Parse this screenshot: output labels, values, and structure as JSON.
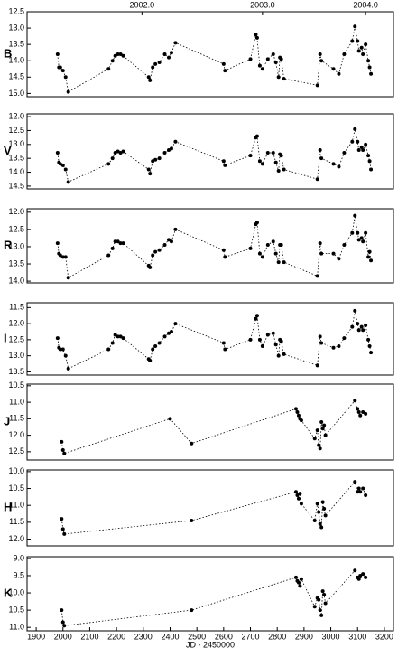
{
  "chart_data": [
    {
      "type": "line",
      "ylabel": "B",
      "color": "#000000",
      "linestyle": "dotted",
      "y_inverted": true,
      "xlim": [
        1866,
        3234
      ],
      "ylim": [
        12.5,
        15.1
      ],
      "yticks": [
        12.5,
        {
          "value": 13,
          "label": "13.0"
        },
        13.5,
        {
          "value": 14,
          "label": "14.0"
        },
        14.5,
        {
          "value": 15,
          "label": "15.0"
        }
      ],
      "x2ticks": [
        {
          "value": 2295,
          "label": "2002.0"
        },
        {
          "value": 2745,
          "label": "2003.0"
        },
        {
          "value": 3130,
          "label": "2004.0"
        }
      ],
      "x": [
        1980,
        1985,
        1990,
        2000,
        2010,
        2020,
        2170,
        2185,
        2195,
        2205,
        2215,
        2225,
        2320,
        2325,
        2335,
        2345,
        2360,
        2380,
        2395,
        2405,
        2420,
        2600,
        2605,
        2700,
        2720,
        2725,
        2735,
        2745,
        2765,
        2785,
        2795,
        2805,
        2810,
        2815,
        2825,
        2950,
        2960,
        2965,
        3010,
        3030,
        3050,
        3080,
        3090,
        3100,
        3105,
        3115,
        3120,
        3130,
        3140,
        3145,
        3150
      ],
      "values": [
        13.8,
        14.2,
        14.2,
        14.3,
        14.5,
        14.95,
        14.25,
        14.0,
        13.85,
        13.8,
        13.8,
        13.85,
        14.5,
        14.6,
        14.2,
        14.1,
        14.05,
        13.8,
        13.9,
        13.75,
        13.45,
        14.1,
        14.3,
        13.95,
        13.2,
        13.3,
        14.15,
        14.25,
        13.95,
        13.8,
        14.05,
        14.5,
        13.9,
        13.95,
        14.55,
        14.75,
        13.8,
        14.0,
        14.25,
        14.4,
        13.8,
        13.4,
        12.95,
        13.4,
        13.7,
        13.6,
        13.8,
        13.5,
        14.0,
        14.2,
        14.4
      ]
    },
    {
      "type": "line",
      "ylabel": "V",
      "color": "#000000",
      "linestyle": "dotted",
      "y_inverted": true,
      "xlim": [
        1866,
        3234
      ],
      "ylim": [
        11.9,
        14.6
      ],
      "yticks": [
        {
          "value": 12,
          "label": "12.0"
        },
        12.5,
        {
          "value": 13,
          "label": "13.0"
        },
        13.5,
        {
          "value": 14,
          "label": "14.0"
        },
        14.5
      ],
      "x": [
        1980,
        1985,
        1990,
        2000,
        2010,
        2020,
        2170,
        2185,
        2195,
        2205,
        2215,
        2225,
        2320,
        2325,
        2335,
        2345,
        2360,
        2380,
        2395,
        2405,
        2420,
        2600,
        2605,
        2700,
        2720,
        2725,
        2735,
        2745,
        2765,
        2785,
        2795,
        2805,
        2810,
        2815,
        2825,
        2950,
        2960,
        2965,
        3010,
        3030,
        3050,
        3080,
        3090,
        3100,
        3105,
        3115,
        3120,
        3130,
        3140,
        3145,
        3150
      ],
      "values": [
        13.3,
        13.65,
        13.7,
        13.75,
        13.9,
        14.35,
        13.7,
        13.5,
        13.3,
        13.25,
        13.3,
        13.25,
        13.9,
        14.05,
        13.6,
        13.55,
        13.5,
        13.3,
        13.2,
        13.15,
        12.9,
        13.6,
        13.75,
        13.4,
        12.75,
        12.7,
        13.6,
        13.7,
        13.3,
        13.3,
        13.65,
        13.95,
        13.35,
        13.4,
        13.9,
        14.25,
        13.2,
        13.5,
        13.7,
        13.8,
        13.3,
        12.9,
        12.45,
        12.9,
        13.2,
        13.1,
        13.2,
        13.0,
        13.4,
        13.6,
        13.9
      ]
    },
    {
      "type": "line",
      "ylabel": "R",
      "color": "#000000",
      "linestyle": "dotted",
      "y_inverted": true,
      "xlim": [
        1866,
        3234
      ],
      "ylim": [
        11.9,
        14.05
      ],
      "yticks": [
        {
          "value": 12,
          "label": "12.0"
        },
        12.5,
        {
          "value": 13,
          "label": "13.0"
        },
        13.5,
        {
          "value": 14,
          "label": "14.0"
        }
      ],
      "x": [
        1980,
        1985,
        1990,
        2000,
        2010,
        2020,
        2170,
        2185,
        2195,
        2205,
        2215,
        2225,
        2320,
        2325,
        2335,
        2345,
        2360,
        2380,
        2395,
        2405,
        2420,
        2600,
        2605,
        2700,
        2720,
        2725,
        2735,
        2745,
        2765,
        2785,
        2795,
        2805,
        2810,
        2815,
        2825,
        2950,
        2960,
        2965,
        3010,
        3030,
        3050,
        3080,
        3090,
        3100,
        3105,
        3115,
        3120,
        3130,
        3140,
        3145,
        3150
      ],
      "values": [
        12.9,
        13.2,
        13.25,
        13.3,
        13.3,
        13.9,
        13.25,
        13.05,
        12.85,
        12.85,
        12.9,
        12.9,
        13.55,
        13.6,
        13.25,
        13.15,
        13.1,
        12.95,
        12.8,
        12.85,
        12.5,
        13.1,
        13.3,
        13.05,
        12.35,
        12.3,
        13.2,
        13.3,
        12.95,
        12.85,
        13.2,
        13.45,
        12.95,
        12.95,
        13.45,
        13.85,
        12.9,
        13.2,
        13.2,
        13.35,
        12.95,
        12.6,
        12.1,
        12.6,
        12.8,
        12.75,
        12.85,
        12.6,
        13.3,
        13.15,
        13.4
      ]
    },
    {
      "type": "line",
      "ylabel": "I",
      "color": "#000000",
      "linestyle": "dotted",
      "y_inverted": true,
      "xlim": [
        1866,
        3234
      ],
      "ylim": [
        11.35,
        13.6
      ],
      "yticks": [
        11.5,
        {
          "value": 12,
          "label": "12.0"
        },
        12.5,
        {
          "value": 13,
          "label": "13.0"
        },
        13.5
      ],
      "x": [
        1980,
        1985,
        1990,
        2000,
        2010,
        2020,
        2170,
        2185,
        2195,
        2205,
        2215,
        2225,
        2320,
        2325,
        2335,
        2345,
        2360,
        2380,
        2395,
        2405,
        2420,
        2600,
        2605,
        2700,
        2720,
        2725,
        2735,
        2745,
        2765,
        2785,
        2795,
        2805,
        2810,
        2815,
        2825,
        2950,
        2960,
        2965,
        3010,
        3030,
        3050,
        3080,
        3090,
        3100,
        3105,
        3115,
        3120,
        3130,
        3140,
        3145,
        3150
      ],
      "values": [
        12.45,
        12.75,
        12.8,
        12.8,
        13.0,
        13.4,
        12.8,
        12.6,
        12.35,
        12.4,
        12.4,
        12.45,
        13.1,
        13.15,
        12.8,
        12.7,
        12.6,
        12.4,
        12.3,
        12.25,
        12.0,
        12.6,
        12.8,
        12.5,
        11.85,
        11.75,
        12.5,
        12.7,
        12.35,
        12.3,
        12.65,
        13.0,
        12.5,
        12.55,
        12.95,
        13.3,
        12.4,
        12.6,
        12.75,
        12.7,
        12.45,
        12.1,
        11.6,
        12.0,
        12.2,
        12.1,
        12.2,
        12.05,
        12.5,
        12.7,
        12.9
      ]
    },
    {
      "type": "line",
      "ylabel": "J",
      "color": "#000000",
      "linestyle": "dotted",
      "y_inverted": true,
      "xlim": [
        1866,
        3234
      ],
      "ylim": [
        10.45,
        12.75
      ],
      "yticks": [
        10.5,
        {
          "value": 11,
          "label": "11.0"
        },
        11.5,
        {
          "value": 12,
          "label": "12.0"
        },
        12.5
      ],
      "x": [
        1995,
        2000,
        2005,
        2400,
        2480,
        2870,
        2875,
        2880,
        2885,
        2890,
        2940,
        2950,
        2955,
        2960,
        2965,
        2970,
        2975,
        2980,
        3090,
        3100,
        3105,
        3110,
        3120,
        3130
      ],
      "values": [
        12.2,
        12.45,
        12.55,
        11.5,
        12.25,
        11.2,
        11.3,
        11.4,
        11.5,
        11.55,
        12.1,
        11.85,
        12.3,
        12.4,
        11.6,
        11.8,
        11.7,
        12.0,
        10.95,
        11.2,
        11.3,
        11.4,
        11.3,
        11.35
      ]
    },
    {
      "type": "line",
      "ylabel": "H",
      "color": "#000000",
      "linestyle": "dotted",
      "y_inverted": true,
      "xlim": [
        1866,
        3234
      ],
      "ylim": [
        9.95,
        12.2
      ],
      "yticks": [
        {
          "value": 10,
          "label": "10.0"
        },
        10.5,
        {
          "value": 11,
          "label": "11.0"
        },
        11.5,
        {
          "value": 12,
          "label": "12.0"
        }
      ],
      "x": [
        1995,
        2000,
        2005,
        2480,
        2870,
        2875,
        2880,
        2885,
        2890,
        2940,
        2950,
        2955,
        2960,
        2965,
        2970,
        2975,
        2980,
        3090,
        3100,
        3105,
        3110,
        3120,
        3130
      ],
      "values": [
        11.4,
        11.7,
        11.85,
        11.45,
        10.6,
        10.7,
        10.8,
        10.65,
        10.95,
        11.45,
        10.95,
        11.2,
        11.55,
        11.65,
        10.9,
        11.1,
        11.3,
        10.3,
        10.6,
        10.5,
        10.6,
        10.5,
        10.7
      ]
    },
    {
      "type": "line",
      "ylabel": "K",
      "color": "#000000",
      "linestyle": "dotted",
      "y_inverted": true,
      "xlim": [
        1866,
        3234
      ],
      "ylim": [
        8.95,
        11.1
      ],
      "yticks": [
        {
          "value": 9,
          "label": "9.0"
        },
        9.5,
        {
          "value": 10,
          "label": "10.0"
        },
        10.5,
        {
          "value": 11,
          "label": "11.0"
        }
      ],
      "xticks": [
        1900,
        2000,
        2100,
        2200,
        2300,
        2400,
        2500,
        2600,
        2700,
        2800,
        2900,
        3000,
        3100,
        3200
      ],
      "xlabel": "JD - 2450000",
      "x": [
        1995,
        2000,
        2005,
        2480,
        2870,
        2875,
        2880,
        2885,
        2890,
        2940,
        2950,
        2955,
        2960,
        2965,
        2970,
        2975,
        2980,
        3090,
        3100,
        3105,
        3110,
        3120,
        3130
      ],
      "values": [
        10.5,
        10.85,
        10.95,
        10.5,
        9.55,
        9.65,
        9.7,
        9.8,
        9.6,
        10.4,
        10.15,
        10.2,
        10.5,
        10.65,
        9.95,
        10.05,
        10.3,
        9.35,
        9.55,
        9.6,
        9.5,
        9.45,
        9.55
      ]
    }
  ]
}
